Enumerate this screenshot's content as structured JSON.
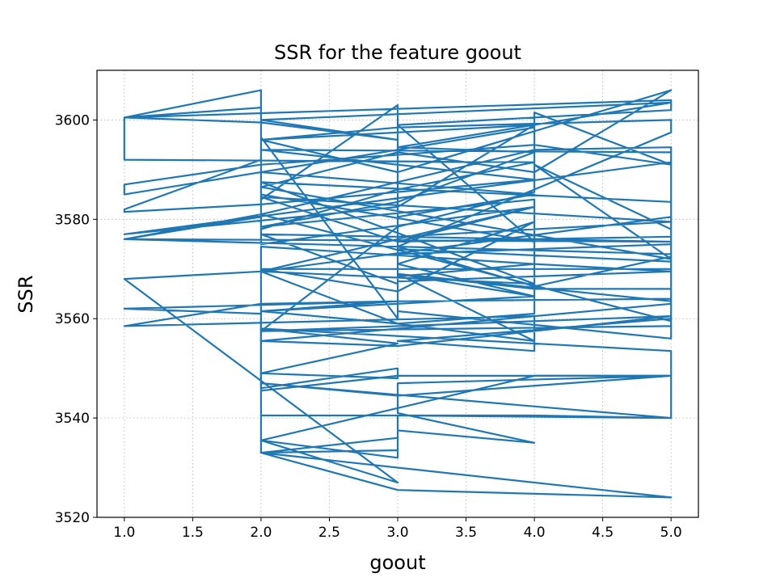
{
  "chart_data": {
    "type": "line",
    "title": "SSR for the feature goout",
    "xlabel": "goout",
    "ylabel": "SSR",
    "xlim": [
      0.8,
      5.2
    ],
    "ylim": [
      3520,
      3610
    ],
    "xticks": [
      "1.0",
      "1.5",
      "2.0",
      "2.5",
      "3.0",
      "3.5",
      "4.0",
      "4.5",
      "5.0"
    ],
    "yticks": [
      "3520",
      "3540",
      "3560",
      "3580",
      "3600"
    ],
    "grid": true,
    "line_color": "#1f77b4",
    "series": [
      {
        "x": [
          1,
          1,
          2,
          2,
          3,
          3,
          2,
          2,
          1,
          1,
          4,
          3,
          2,
          2,
          1,
          1,
          2,
          4,
          2,
          5,
          5,
          1,
          3,
          4,
          2,
          3,
          5,
          5,
          3,
          3,
          4,
          4,
          3,
          2,
          5,
          5,
          2,
          2,
          2,
          1,
          3,
          2,
          1,
          4,
          4,
          3,
          5,
          5,
          3,
          3,
          4,
          2,
          4,
          1,
          1,
          2,
          4,
          5,
          4,
          4,
          3,
          2,
          5,
          5,
          3,
          3,
          5,
          4,
          2,
          2,
          3,
          3,
          2,
          3,
          2,
          5,
          5,
          4,
          2,
          3,
          1,
          2,
          4,
          2,
          5,
          5,
          2,
          3,
          4,
          2,
          2,
          1,
          5,
          5,
          3,
          3,
          4,
          4,
          3,
          2,
          4,
          3,
          5,
          5,
          4,
          3,
          3,
          5,
          5,
          4,
          5,
          2,
          3,
          4,
          5,
          3,
          2,
          2,
          4,
          3,
          5,
          5,
          1,
          2,
          3,
          2,
          5,
          3,
          4,
          3,
          2,
          4,
          4,
          3,
          3,
          2,
          5,
          1,
          2,
          4,
          5,
          5,
          2,
          3,
          5,
          5,
          4,
          3,
          4,
          3,
          2,
          2,
          5,
          5,
          3,
          2,
          4,
          3,
          5,
          5,
          2,
          2
        ],
        "y": [
          3595.5,
          3600.5,
          3602.5,
          3584.0,
          3603.0,
          3560.0,
          3596.5,
          3606.0,
          3600.5,
          3592.0,
          3591.5,
          3586.0,
          3578.0,
          3592.0,
          3582.0,
          3581.5,
          3583.0,
          3588.0,
          3594.0,
          3593.5,
          3591.5,
          3577.0,
          3582.5,
          3599.0,
          3596.0,
          3598.5,
          3600.0,
          3597.5,
          3574.5,
          3568.5,
          3571.0,
          3579.5,
          3565.5,
          3570.0,
          3570.0,
          3580.5,
          3569.5,
          3562.5,
          3561.0,
          3562.0,
          3563.5,
          3563.0,
          3558.5,
          3560.5,
          3553.5,
          3555.5,
          3560.0,
          3556.0,
          3561.5,
          3580.5,
          3585.0,
          3589.5,
          3598.5,
          3585.0,
          3587.0,
          3591.0,
          3595.0,
          3591.0,
          3601.5,
          3585.5,
          3578.5,
          3557.5,
          3560.5,
          3571.5,
          3574.0,
          3567.5,
          3569.5,
          3571.0,
          3574.5,
          3546.0,
          3550.0,
          3548.0,
          3549.0,
          3555.0,
          3558.0,
          3553.5,
          3548.5,
          3548.5,
          3535.5,
          3527.0,
          3568.0,
          3569.5,
          3567.0,
          3587.5,
          3583.5,
          3579.5,
          3584.5,
          3575.5,
          3582.5,
          3575.0,
          3580.5,
          3576.0,
          3573.0,
          3575.0,
          3573.0,
          3571.0,
          3579.5,
          3561.0,
          3559.0,
          3569.5,
          3582.5,
          3575.5,
          3576.5,
          3572.5,
          3566.5,
          3574.5,
          3576.5,
          3579.5,
          3578.0,
          3591.0,
          3572.0,
          3586.5,
          3593.5,
          3589.5,
          3606.0,
          3589.5,
          3596.0,
          3585.0,
          3575.5,
          3599.0,
          3602.0,
          3604.0,
          3600.5,
          3599.5,
          3596.0,
          3600.0,
          3603.5,
          3594.5,
          3593.5,
          3583.5,
          3578.5,
          3584.0,
          3564.5,
          3571.0,
          3567.0,
          3577.0,
          3575.5,
          3576.0,
          3581.0,
          3594.0,
          3594.5,
          3563.0,
          3555.5,
          3554.5,
          3560.5,
          3566.0,
          3566.0,
          3569.0,
          3555.5,
          3559.0,
          3561.5,
          3557.5,
          3558.5,
          3564.0,
          3563.5,
          3561.5,
          3564.5,
          3569.0,
          3563.5,
          3559.5,
          3581.0,
          3594.0
        ]
      },
      {
        "x": [
          2,
          2,
          3,
          3,
          4,
          3,
          3,
          5,
          5,
          3,
          3,
          2,
          5,
          5,
          3,
          3,
          2,
          2,
          2,
          3,
          4,
          5,
          2,
          3,
          5,
          4,
          3,
          2,
          2,
          3
        ],
        "y": [
          3560.0,
          3535.5,
          3532.0,
          3537.5,
          3535.0,
          3541.0,
          3547.0,
          3548.5,
          3540.0,
          3540.5,
          3536.0,
          3533.0,
          3524.0,
          3524.0,
          3525.5,
          3525.5,
          3533.0,
          3541.0,
          3540.5,
          3540.5,
          3540.5,
          3540.0,
          3547.0,
          3544.5,
          3548.5,
          3548.5,
          3548.5,
          3545.5,
          3533.0,
          3533.5
        ]
      }
    ]
  }
}
